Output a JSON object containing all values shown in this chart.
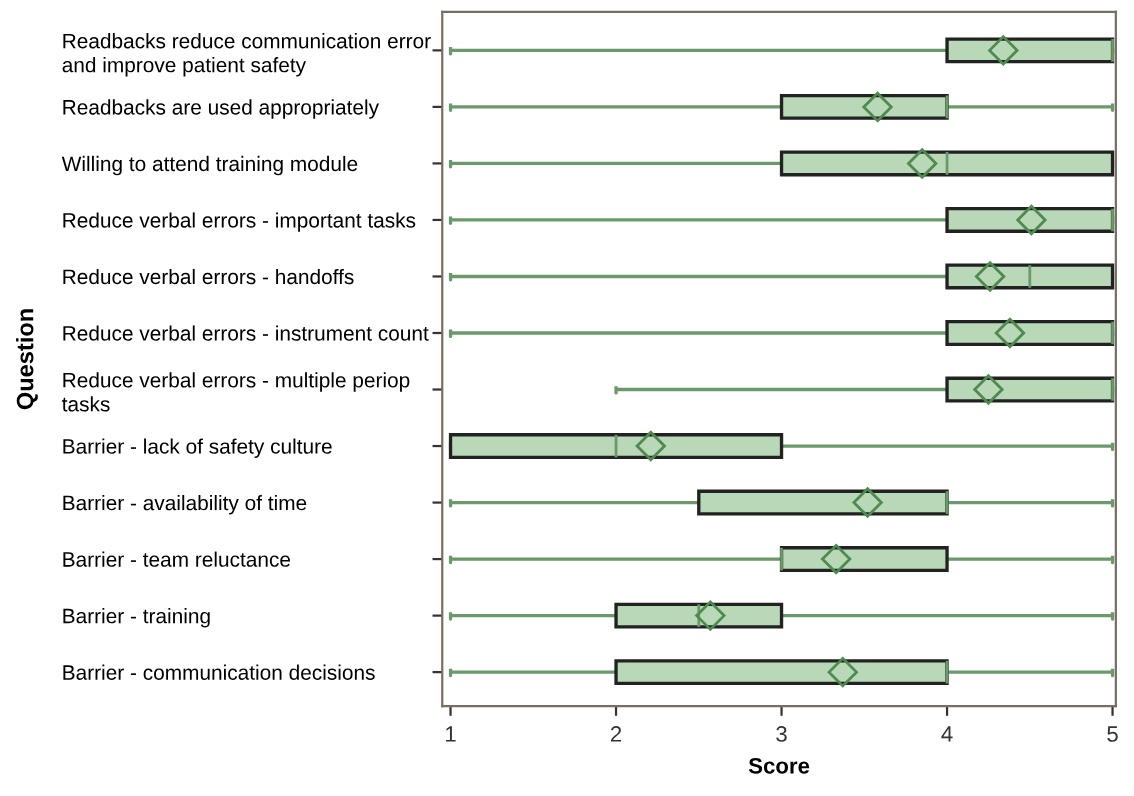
{
  "chart_data": {
    "type": "box",
    "orientation": "horizontal",
    "xlabel": "Score",
    "ylabel": "Question",
    "categories": [
      "Readbacks reduce communication error and improve patient safety",
      "Readbacks are used appropriately",
      "Willing to attend training module",
      "Reduce verbal errors - important tasks",
      "Reduce verbal errors - handoffs",
      "Reduce verbal errors - instrument count",
      "Reduce verbal errors - multiple periop tasks",
      "Barrier - lack of safety culture",
      "Barrier - availability of time",
      "Barrier - team reluctance",
      "Barrier - training",
      "Barrier - communication decisions"
    ],
    "series": [
      {
        "color": "#b8d8b8",
        "boxes": [
          {
            "low": 1,
            "q1": 4,
            "median": 5,
            "q3": 5,
            "high": 5,
            "mean": 4.34
          },
          {
            "low": 1,
            "q1": 3,
            "median": 4,
            "q3": 4,
            "high": 5,
            "mean": 3.58
          },
          {
            "low": 1,
            "q1": 3,
            "median": 4,
            "q3": 5,
            "high": 5,
            "mean": 3.85
          },
          {
            "low": 1,
            "q1": 4,
            "median": 5,
            "q3": 5,
            "high": 5,
            "mean": 4.51
          },
          {
            "low": 1,
            "q1": 4,
            "median": 4.5,
            "q3": 5,
            "high": 5,
            "mean": 4.26
          },
          {
            "low": 1,
            "q1": 4,
            "median": 5,
            "q3": 5,
            "high": 5,
            "mean": 4.38
          },
          {
            "low": 2,
            "q1": 4,
            "median": 5,
            "q3": 5,
            "high": 5,
            "mean": 4.25
          },
          {
            "low": 1,
            "q1": 1,
            "median": 2,
            "q3": 3,
            "high": 5,
            "mean": 2.21
          },
          {
            "low": 1,
            "q1": 2.5,
            "median": 4,
            "q3": 4,
            "high": 5,
            "mean": 3.52
          },
          {
            "low": 1,
            "q1": 3,
            "median": 3,
            "q3": 4,
            "high": 5,
            "mean": 3.33
          },
          {
            "low": 1,
            "q1": 2,
            "median": 2.5,
            "q3": 3,
            "high": 5,
            "mean": 2.57
          },
          {
            "low": 1,
            "q1": 2,
            "median": 4,
            "q3": 4,
            "high": 5,
            "mean": 3.37
          }
        ]
      }
    ],
    "xlim": [
      0.95,
      5.02
    ],
    "xticks": [
      1,
      2,
      3,
      4,
      5
    ],
    "marker": "diamond",
    "grid": false,
    "legend": false
  }
}
